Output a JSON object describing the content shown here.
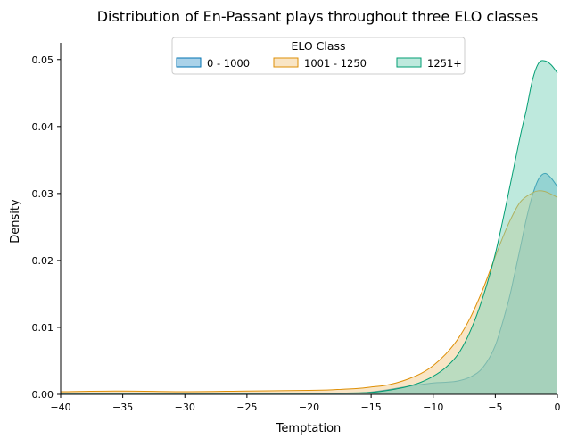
{
  "chart_data": {
    "type": "area",
    "subtype": "kde",
    "title": "Distribution of En-Passant plays throughout three ELO classes",
    "xlabel": "Temptation",
    "ylabel": "Density",
    "xlim": [
      -40,
      0
    ],
    "ylim": [
      0,
      0.0525
    ],
    "xticks": [
      -40,
      -35,
      -30,
      -25,
      -20,
      -15,
      -10,
      -5,
      0
    ],
    "xtick_labels": [
      "−40",
      "−35",
      "−30",
      "−25",
      "−20",
      "−15",
      "−10",
      "−5",
      "0"
    ],
    "yticks": [
      0,
      0.01,
      0.02,
      0.03,
      0.04,
      0.05
    ],
    "ytick_labels": [
      "0.00",
      "0.01",
      "0.02",
      "0.03",
      "0.04",
      "0.05"
    ],
    "grid": false,
    "legend": {
      "title": "ELO Class",
      "placement": "top-center",
      "columns": 3
    },
    "series": [
      {
        "name": "0 - 1000",
        "color": "#0173b2",
        "fill": "#56a6d4",
        "x": [
          -40,
          -35,
          -30,
          -25,
          -20,
          -16,
          -14,
          -12,
          -10,
          -9,
          -8,
          -7,
          -6,
          -5,
          -4,
          -3.5,
          -3,
          -2.5,
          -2,
          -1.5,
          -1,
          -0.5,
          0
        ],
        "values": [
          0.0001,
          0.0001,
          0.0001,
          0.0001,
          0.0001,
          0.0002,
          0.0006,
          0.0012,
          0.0017,
          0.0018,
          0.002,
          0.0026,
          0.004,
          0.0073,
          0.0135,
          0.0175,
          0.0218,
          0.0262,
          0.0298,
          0.0322,
          0.033,
          0.0323,
          0.031
        ]
      },
      {
        "name": "1001 - 1250",
        "color": "#de8f05",
        "fill": "#f3cb8b",
        "x": [
          -40,
          -35,
          -30,
          -25,
          -20,
          -18,
          -16,
          -15,
          -14,
          -13,
          -12,
          -11,
          -10,
          -9,
          -8,
          -7,
          -6,
          -5,
          -4,
          -3,
          -2,
          -1.5,
          -1,
          -0.5,
          0
        ],
        "values": [
          0.0004,
          0.0005,
          0.0004,
          0.0005,
          0.0006,
          0.0007,
          0.0009,
          0.0011,
          0.0013,
          0.0017,
          0.0023,
          0.0031,
          0.0043,
          0.006,
          0.0083,
          0.0115,
          0.0157,
          0.0206,
          0.0252,
          0.0287,
          0.0301,
          0.0304,
          0.0303,
          0.0299,
          0.0294
        ]
      },
      {
        "name": "1251+",
        "color": "#029e73",
        "fill": "#7dd3bb",
        "x": [
          -40,
          -35,
          -30,
          -25,
          -20,
          -17,
          -15,
          -14,
          -13,
          -12,
          -11,
          -10,
          -9,
          -8,
          -7,
          -6,
          -5,
          -4,
          -3,
          -2.5,
          -2,
          -1.5,
          -1,
          -0.5,
          0
        ],
        "values": [
          0.0002,
          0.0002,
          0.0002,
          0.0002,
          0.0002,
          0.0002,
          0.0003,
          0.0005,
          0.0008,
          0.0012,
          0.0018,
          0.0027,
          0.004,
          0.006,
          0.0095,
          0.0145,
          0.021,
          0.0295,
          0.0385,
          0.0425,
          0.047,
          0.0495,
          0.0498,
          0.0492,
          0.048
        ]
      }
    ]
  }
}
